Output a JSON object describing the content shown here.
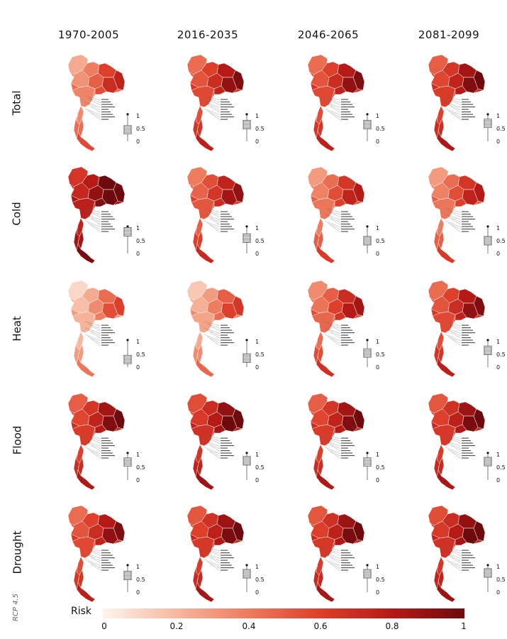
{
  "periods": [
    "1970-2005",
    "2016-2035",
    "2046-2065",
    "2081-2099"
  ],
  "hazards": [
    "Total",
    "Cold",
    "Heat",
    "Flood",
    "Drought"
  ],
  "scenario_label": "RCP 4.5",
  "colorbar": {
    "title": "Risk",
    "ticks": [
      "0",
      "0.2",
      "0.4",
      "0.6",
      "0.8",
      "1"
    ],
    "range": [
      0,
      1
    ],
    "colors": [
      "#fff4ee",
      "#f6b9a0",
      "#ee7c5e",
      "#dd3f2b",
      "#b51a17",
      "#6e0a0e"
    ]
  },
  "inset_scale": [
    "1",
    "0.5",
    "0"
  ],
  "approx_mean_risk": {
    "Total": [
      0.45,
      0.65,
      0.65,
      0.7
    ],
    "Cold": [
      0.85,
      0.6,
      0.5,
      0.5
    ],
    "Heat": [
      0.3,
      0.35,
      0.55,
      0.65
    ],
    "Flood": [
      0.7,
      0.75,
      0.7,
      0.72
    ],
    "Drought": [
      0.65,
      0.72,
      0.72,
      0.75
    ]
  }
}
